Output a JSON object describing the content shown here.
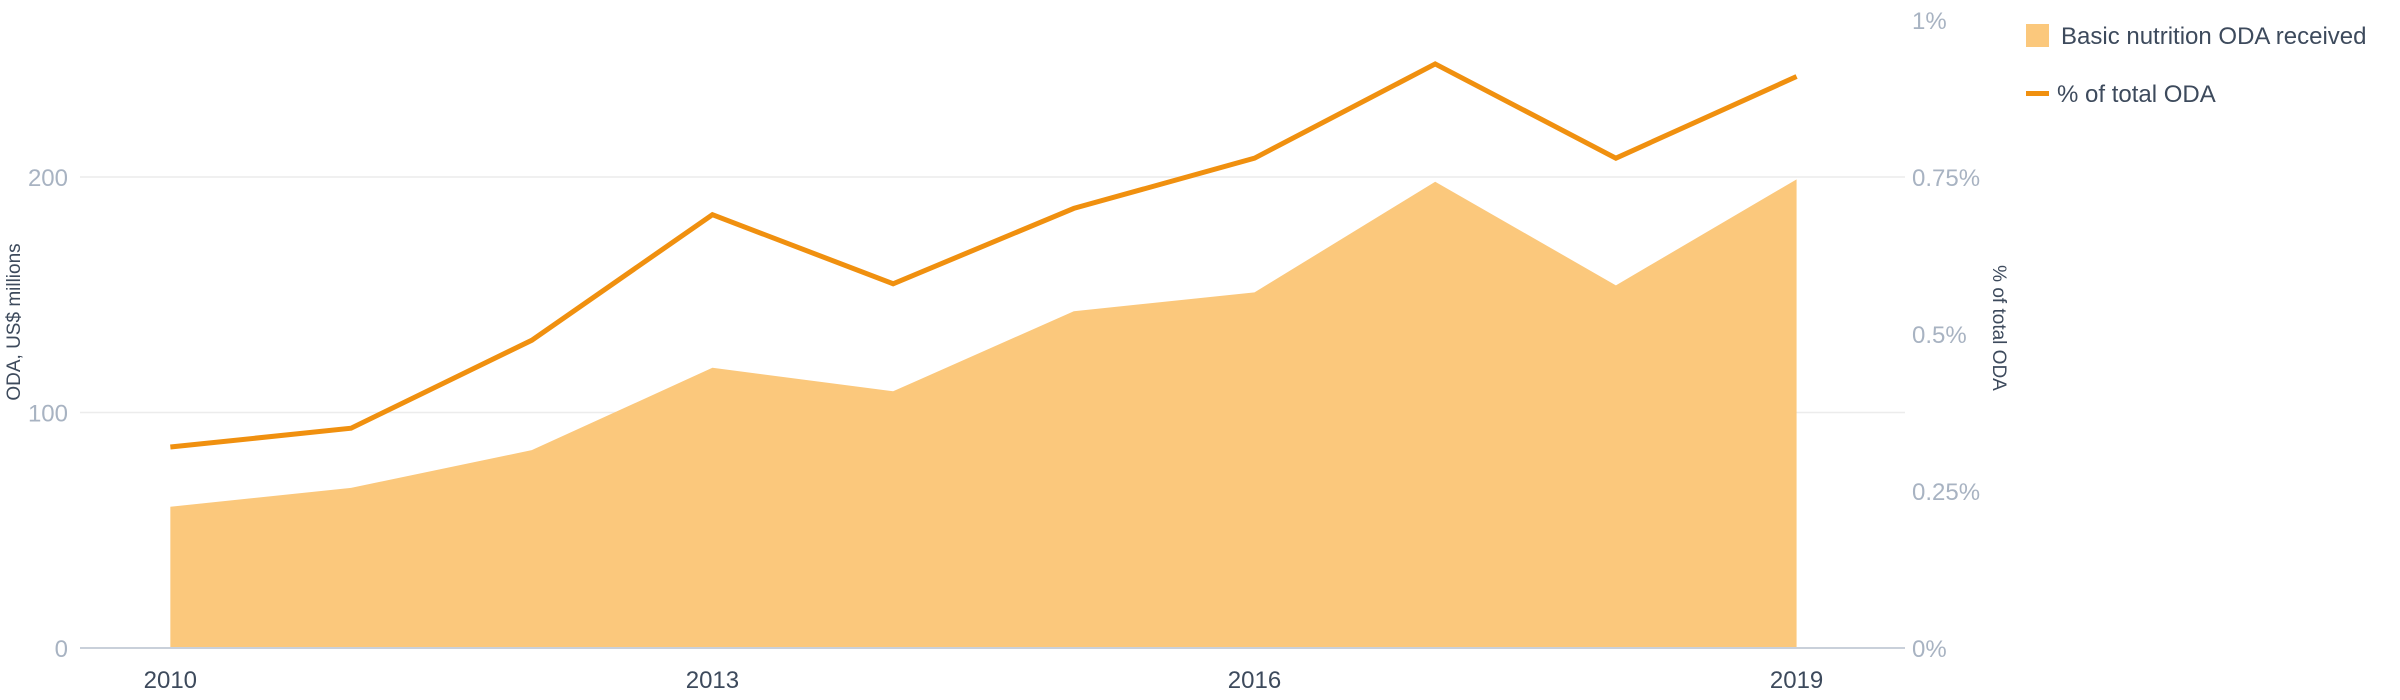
{
  "chart_data": {
    "type": "area",
    "x": [
      2010,
      2011,
      2012,
      2013,
      2014,
      2015,
      2016,
      2017,
      2018,
      2019
    ],
    "x_tick_labels": [
      "2010",
      "2013",
      "2016",
      "2019"
    ],
    "series": [
      {
        "name": "Basic nutrition ODA received",
        "type": "area",
        "axis": "left",
        "color": "#fbc87c",
        "values": [
          60,
          68,
          84,
          119,
          109,
          143,
          151,
          198,
          154,
          199
        ]
      },
      {
        "name": "% of total ODA",
        "type": "line",
        "axis": "right",
        "color": "#f0900f",
        "values": [
          0.32,
          0.35,
          0.49,
          0.69,
          0.58,
          0.7,
          0.78,
          0.93,
          0.78,
          0.91
        ]
      }
    ],
    "y_left": {
      "label": "ODA, US$ millions",
      "ylim": [
        0,
        266.67
      ],
      "ticks": [
        0,
        100,
        200
      ],
      "tick_labels": [
        "0",
        "100",
        "200"
      ]
    },
    "y_right": {
      "label": "% of total ODA",
      "ylim": [
        0,
        1
      ],
      "ticks": [
        0,
        0.25,
        0.5,
        0.75,
        1
      ],
      "tick_labels": [
        "0%",
        "0.25%",
        "0.5%",
        "0.75%",
        "1%"
      ]
    },
    "xlim": [
      2009.5,
      2019.6
    ],
    "grid": true,
    "legend_position": "top-right"
  }
}
